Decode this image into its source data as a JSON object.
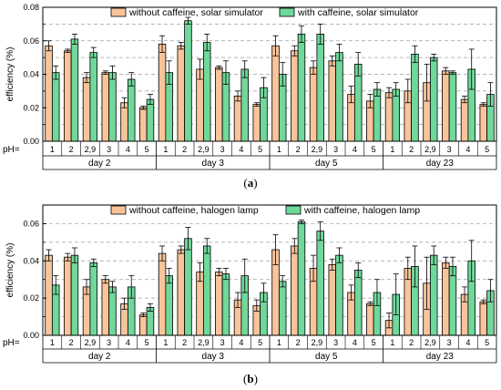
{
  "colors": {
    "without": "#F9C49A",
    "with": "#6FD89A",
    "axis": "#000000",
    "grid": "#9e9e9e"
  },
  "chart_data": [
    {
      "type": "bar",
      "caption": "a",
      "ylabel": "efficiency (%)",
      "ylim": [
        0,
        0.08
      ],
      "yticks": [
        "0.00",
        "0.02",
        "0.04",
        "0.06",
        "0.08"
      ],
      "ph_prefix": "pH=",
      "ph_labels": [
        "1",
        "2",
        "2,9",
        "3",
        "4",
        "5"
      ],
      "groups": [
        "day 2",
        "day 3",
        "day 5",
        "day 23"
      ],
      "grid": true,
      "legend_position": "top",
      "series": [
        {
          "name": "without caffeine, solar simulator",
          "values": [
            0.057,
            0.054,
            0.038,
            0.041,
            0.023,
            0.02,
            0.058,
            0.057,
            0.043,
            0.044,
            0.027,
            0.022,
            0.057,
            0.054,
            0.044,
            0.048,
            0.028,
            0.024,
            0.029,
            0.03,
            0.035,
            0.042,
            0.025,
            0.022
          ],
          "errors": [
            0.003,
            0.001,
            0.003,
            0.001,
            0.003,
            0.001,
            0.005,
            0.002,
            0.006,
            0.001,
            0.003,
            0.001,
            0.006,
            0.003,
            0.004,
            0.003,
            0.005,
            0.004,
            0.003,
            0.007,
            0.011,
            0.002,
            0.002,
            0.001
          ]
        },
        {
          "name": "with caffeine, solar simulator",
          "values": [
            0.041,
            0.061,
            0.053,
            0.041,
            0.037,
            0.025,
            0.041,
            0.072,
            0.059,
            0.041,
            0.043,
            0.032,
            0.04,
            0.064,
            0.064,
            0.053,
            0.046,
            0.031,
            0.031,
            0.052,
            0.05,
            0.041,
            0.043,
            0.028
          ],
          "errors": [
            0.004,
            0.003,
            0.003,
            0.004,
            0.004,
            0.003,
            0.007,
            0.002,
            0.005,
            0.007,
            0.005,
            0.006,
            0.007,
            0.005,
            0.006,
            0.005,
            0.007,
            0.004,
            0.004,
            0.005,
            0.002,
            0.001,
            0.012,
            0.007
          ]
        }
      ]
    },
    {
      "type": "bar",
      "caption": "b",
      "ylabel": "efficiency (%)",
      "ylim": [
        0,
        0.07
      ],
      "yticks": [
        "0.00",
        "0.02",
        "0.04",
        "0.06"
      ],
      "ph_prefix": "pH=",
      "ph_labels": [
        "1",
        "2",
        "2,9",
        "3",
        "4",
        "5"
      ],
      "groups": [
        "day 2",
        "day 3",
        "day 5",
        "day 23"
      ],
      "grid": true,
      "legend_position": "top",
      "series": [
        {
          "name": "without caffeine, halogen lamp",
          "values": [
            0.043,
            0.042,
            0.026,
            0.03,
            0.017,
            0.011,
            0.044,
            0.046,
            0.034,
            0.034,
            0.019,
            0.016,
            0.046,
            0.048,
            0.036,
            0.038,
            0.023,
            0.017,
            0.008,
            0.036,
            0.028,
            0.039,
            0.022,
            0.018
          ],
          "errors": [
            0.003,
            0.002,
            0.004,
            0.002,
            0.003,
            0.001,
            0.004,
            0.002,
            0.005,
            0.002,
            0.004,
            0.003,
            0.008,
            0.004,
            0.007,
            0.003,
            0.004,
            0.001,
            0.004,
            0.006,
            0.014,
            0.003,
            0.004,
            0.001
          ]
        },
        {
          "name": "with caffeine, halogen lamp",
          "values": [
            0.027,
            0.043,
            0.039,
            0.026,
            0.026,
            0.015,
            0.032,
            0.052,
            0.048,
            0.033,
            0.032,
            0.023,
            0.029,
            0.061,
            0.056,
            0.043,
            0.035,
            0.023,
            0.022,
            0.037,
            0.043,
            0.037,
            0.04,
            0.024
          ],
          "errors": [
            0.005,
            0.004,
            0.002,
            0.003,
            0.006,
            0.002,
            0.004,
            0.006,
            0.004,
            0.003,
            0.009,
            0.005,
            0.003,
            0.001,
            0.005,
            0.004,
            0.004,
            0.007,
            0.011,
            0.011,
            0.005,
            0.005,
            0.011,
            0.006
          ]
        }
      ]
    }
  ]
}
